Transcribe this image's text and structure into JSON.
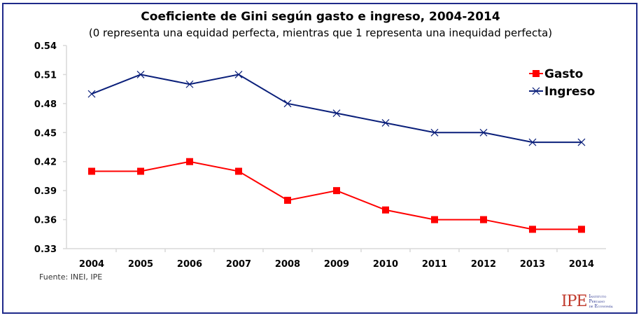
{
  "chart_data": {
    "type": "line",
    "title": "Coeficiente de Gini según gasto e ingreso, 2004-2014",
    "subtitle": "(0 representa una equidad perfecta, mientras que 1 representa una inequidad perfecta)",
    "xlabel": "",
    "ylabel": "",
    "categories": [
      "2004",
      "2005",
      "2006",
      "2007",
      "2008",
      "2009",
      "2010",
      "2011",
      "2012",
      "2013",
      "2014"
    ],
    "yticks": [
      "0.33",
      "0.36",
      "0.39",
      "0.42",
      "0.45",
      "0.48",
      "0.51",
      "0.54"
    ],
    "ylim": [
      0.33,
      0.54
    ],
    "grid": false,
    "legend_position": "top-right",
    "series": [
      {
        "name": "Gasto",
        "color": "#ff0000",
        "marker": "square",
        "values": [
          0.41,
          0.41,
          0.42,
          0.41,
          0.38,
          0.39,
          0.37,
          0.36,
          0.36,
          0.35,
          0.35
        ]
      },
      {
        "name": "Ingreso",
        "color": "#0a1f7a",
        "marker": "x",
        "values": [
          0.49,
          0.51,
          0.5,
          0.51,
          0.48,
          0.47,
          0.46,
          0.45,
          0.45,
          0.44,
          0.44
        ]
      }
    ]
  },
  "source": "Fuente: INEI,  IPE",
  "logo": {
    "mark": "IPE",
    "line1": "Instituto",
    "line2": "Peruano",
    "line3": "de Economía"
  }
}
